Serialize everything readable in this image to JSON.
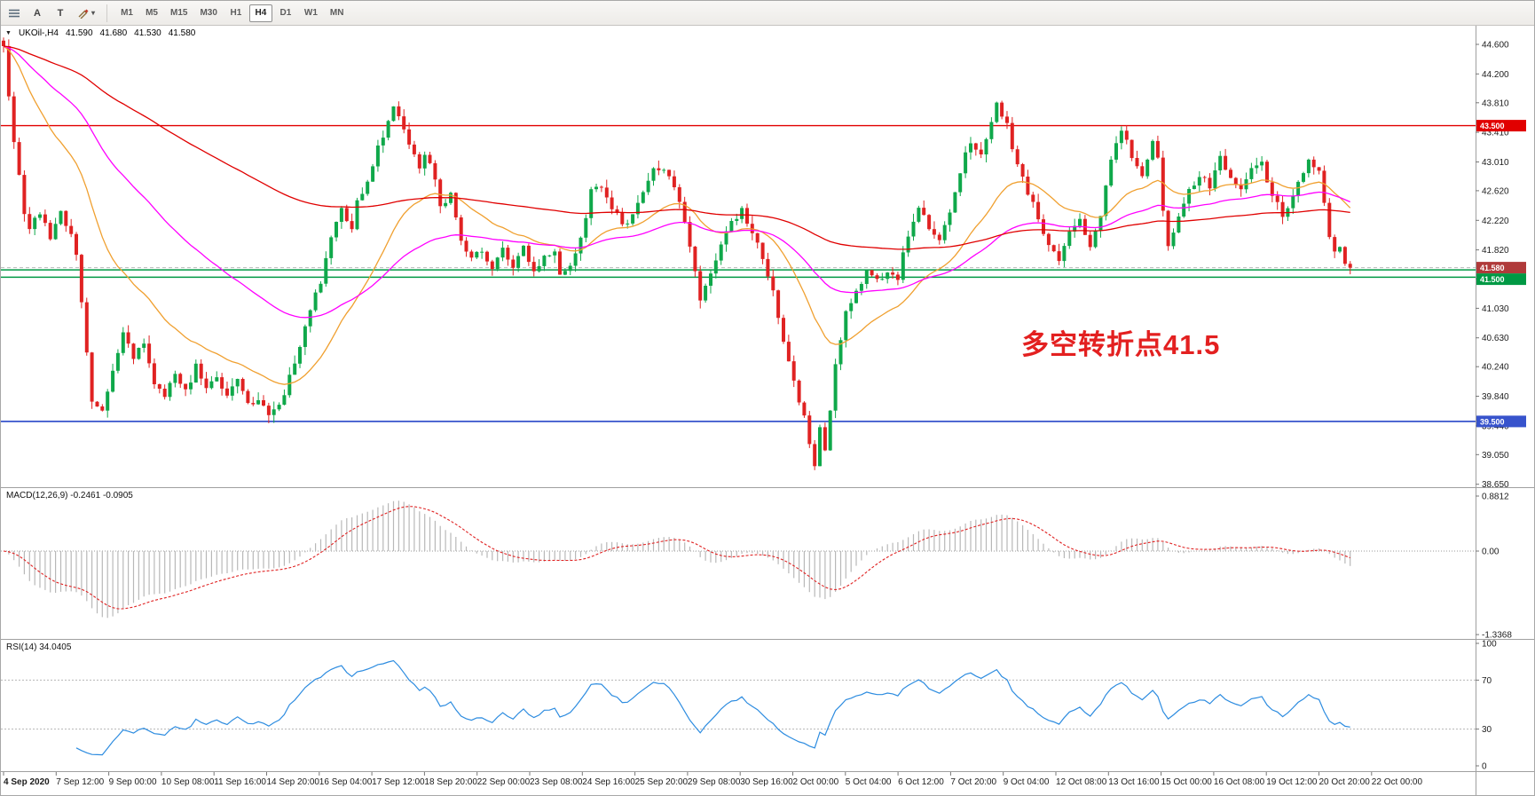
{
  "toolbar": {
    "tools": [
      {
        "name": "chart-list",
        "icon": "chart-list"
      },
      {
        "name": "text-annotation",
        "label": "A"
      },
      {
        "name": "text-label",
        "label": "T"
      },
      {
        "name": "draw",
        "icon": "draw",
        "has_dropdown": true
      }
    ],
    "timeframes": [
      "M1",
      "M5",
      "M15",
      "M30",
      "H1",
      "H4",
      "D1",
      "W1",
      "MN"
    ],
    "active_timeframe": "H4"
  },
  "chart": {
    "readout": {
      "symbol": "UKOil-,H4",
      "open": "41.590",
      "high": "41.680",
      "low": "41.530",
      "close": "41.580"
    },
    "annotation": {
      "text": "多空转折点41.5",
      "color": "#e32020"
    },
    "y_axis": [
      "44.600",
      "44.200",
      "43.810",
      "43.410",
      "43.010",
      "42.620",
      "42.220",
      "41.820",
      "41.430",
      "41.030",
      "40.630",
      "40.240",
      "39.840",
      "39.440",
      "39.050",
      "38.650"
    ],
    "x_axis": [
      "4 Sep 2020",
      "7 Sep 12:00",
      "9 Sep 00:00",
      "10 Sep 08:00",
      "11 Sep 16:00",
      "14 Sep 20:00",
      "16 Sep 04:00",
      "17 Sep 12:00",
      "18 Sep 20:00",
      "22 Sep 00:00",
      "23 Sep 08:00",
      "24 Sep 16:00",
      "25 Sep 20:00",
      "29 Sep 08:00",
      "30 Sep 16:00",
      "2 Oct 00:00",
      "5 Oct 04:00",
      "6 Oct 12:00",
      "7 Oct 20:00",
      "9 Oct 04:00",
      "12 Oct 08:00",
      "13 Oct 16:00",
      "15 Oct 00:00",
      "16 Oct 08:00",
      "19 Oct 12:00",
      "20 Oct 20:00",
      "22 Oct 00:00"
    ],
    "price_badges": [
      {
        "label": "43.500",
        "value": 43.5,
        "bg": "#e10000"
      },
      {
        "label": "41.580",
        "value": 41.58,
        "bg": "#b03a3a"
      },
      {
        "label": "41.500",
        "value": 41.5,
        "bg": "#009944"
      },
      {
        "label": "39.500",
        "value": 39.5,
        "bg": "#3753cc"
      }
    ]
  },
  "macd": {
    "label": "MACD(12,26,9) -0.2461 -0.0905",
    "axis": [
      "0.8812",
      "0.00",
      "-1.3368"
    ]
  },
  "rsi": {
    "label": "RSI(14) 34.0405",
    "axis": [
      "100",
      "70",
      "30",
      "0"
    ]
  },
  "chart_data": {
    "type": "candlestick",
    "symbol": "UKOil-",
    "timeframe": "H4",
    "title": "UKOil- H4 candlestick chart with MACD and RSI",
    "bars": 260,
    "ylim": [
      38.61,
      44.84
    ],
    "current_ohlc": {
      "open": 41.59,
      "high": 41.68,
      "low": 41.53,
      "close": 41.58
    },
    "price_path_anchors": [
      [
        0,
        44.55
      ],
      [
        1,
        43.9
      ],
      [
        2,
        43.3
      ],
      [
        3,
        42.8
      ],
      [
        4,
        42.3
      ],
      [
        5,
        42.1
      ],
      [
        7,
        42.35
      ],
      [
        9,
        41.95
      ],
      [
        11,
        42.3
      ],
      [
        13,
        42.05
      ],
      [
        14,
        41.75
      ],
      [
        16,
        40.45
      ],
      [
        17,
        39.75
      ],
      [
        19,
        39.65
      ],
      [
        21,
        40.15
      ],
      [
        23,
        40.7
      ],
      [
        25,
        40.35
      ],
      [
        27,
        40.6
      ],
      [
        29,
        40.05
      ],
      [
        31,
        39.85
      ],
      [
        33,
        40.15
      ],
      [
        35,
        39.9
      ],
      [
        37,
        40.25
      ],
      [
        39,
        39.95
      ],
      [
        41,
        40.1
      ],
      [
        43,
        39.85
      ],
      [
        45,
        40.05
      ],
      [
        47,
        39.7
      ],
      [
        49,
        39.8
      ],
      [
        51,
        39.6
      ],
      [
        53,
        39.7
      ],
      [
        55,
        40.1
      ],
      [
        57,
        40.55
      ],
      [
        59,
        41
      ],
      [
        61,
        41.4
      ],
      [
        63,
        42
      ],
      [
        65,
        42.35
      ],
      [
        67,
        42.1
      ],
      [
        68,
        42.45
      ],
      [
        70,
        42.7
      ],
      [
        72,
        43.2
      ],
      [
        74,
        43.55
      ],
      [
        75,
        43.8
      ],
      [
        76,
        43.6
      ],
      [
        78,
        43.2
      ],
      [
        80,
        42.95
      ],
      [
        81,
        43.15
      ],
      [
        83,
        42.8
      ],
      [
        84,
        42.4
      ],
      [
        86,
        42.55
      ],
      [
        88,
        41.95
      ],
      [
        90,
        41.7
      ],
      [
        92,
        41.8
      ],
      [
        94,
        41.55
      ],
      [
        96,
        41.85
      ],
      [
        98,
        41.6
      ],
      [
        100,
        41.9
      ],
      [
        102,
        41.5
      ],
      [
        104,
        41.7
      ],
      [
        106,
        41.8
      ],
      [
        107,
        41.45
      ],
      [
        109,
        41.6
      ],
      [
        111,
        41.95
      ],
      [
        113,
        42.6
      ],
      [
        115,
        42.7
      ],
      [
        117,
        42.4
      ],
      [
        119,
        42.15
      ],
      [
        121,
        42.3
      ],
      [
        123,
        42.65
      ],
      [
        125,
        42.9
      ],
      [
        127,
        42.95
      ],
      [
        129,
        42.7
      ],
      [
        131,
        42.2
      ],
      [
        133,
        41.5
      ],
      [
        134,
        41.15
      ],
      [
        136,
        41.55
      ],
      [
        138,
        41.9
      ],
      [
        140,
        42.2
      ],
      [
        142,
        42.35
      ],
      [
        144,
        42.05
      ],
      [
        146,
        41.7
      ],
      [
        148,
        41.3
      ],
      [
        150,
        40.55
      ],
      [
        152,
        40.05
      ],
      [
        154,
        39.55
      ],
      [
        155,
        39.15
      ],
      [
        156,
        38.9
      ],
      [
        157,
        39.45
      ],
      [
        158,
        39.15
      ],
      [
        159,
        39.6
      ],
      [
        160,
        40.25
      ],
      [
        162,
        40.95
      ],
      [
        164,
        41.3
      ],
      [
        166,
        41.5
      ],
      [
        168,
        41.4
      ],
      [
        170,
        41.55
      ],
      [
        172,
        41.45
      ],
      [
        174,
        42.05
      ],
      [
        176,
        42.4
      ],
      [
        178,
        42.15
      ],
      [
        180,
        41.95
      ],
      [
        182,
        42.35
      ],
      [
        184,
        42.9
      ],
      [
        186,
        43.3
      ],
      [
        188,
        43.1
      ],
      [
        190,
        43.55
      ],
      [
        191,
        43.8
      ],
      [
        193,
        43.5
      ],
      [
        195,
        42.95
      ],
      [
        197,
        42.6
      ],
      [
        199,
        42.25
      ],
      [
        201,
        41.9
      ],
      [
        203,
        41.7
      ],
      [
        205,
        42.05
      ],
      [
        207,
        42.2
      ],
      [
        209,
        41.9
      ],
      [
        211,
        42.3
      ],
      [
        213,
        43
      ],
      [
        215,
        43.45
      ],
      [
        217,
        43.1
      ],
      [
        219,
        42.8
      ],
      [
        221,
        43.25
      ],
      [
        222,
        43.05
      ],
      [
        223,
        42.3
      ],
      [
        224,
        41.85
      ],
      [
        226,
        42.3
      ],
      [
        228,
        42.6
      ],
      [
        230,
        42.85
      ],
      [
        232,
        42.65
      ],
      [
        234,
        43.05
      ],
      [
        236,
        42.8
      ],
      [
        238,
        42.6
      ],
      [
        240,
        42.9
      ],
      [
        242,
        43
      ],
      [
        244,
        42.55
      ],
      [
        246,
        42.3
      ],
      [
        248,
        42.55
      ],
      [
        250,
        42.9
      ],
      [
        251,
        43.05
      ],
      [
        253,
        42.85
      ],
      [
        254,
        42.45
      ],
      [
        255,
        42
      ],
      [
        256,
        41.75
      ],
      [
        257,
        41.85
      ],
      [
        258,
        41.65
      ],
      [
        259,
        41.58
      ]
    ],
    "noise": 0.05,
    "wick": 0.11,
    "hlines": [
      {
        "price": 43.5,
        "color": "#e10000",
        "width": 1.4,
        "dash": ""
      },
      {
        "price": 41.55,
        "color": "#009944",
        "width": 1.5,
        "dash": ""
      },
      {
        "price": 41.45,
        "color": "#009944",
        "width": 1.5,
        "dash": ""
      },
      {
        "price": 41.58,
        "color": "#b9b9b9",
        "width": 1,
        "dash": "4 3"
      },
      {
        "price": 39.5,
        "color": "#3753cc",
        "width": 1.7,
        "dash": ""
      }
    ],
    "moving_averages": [
      {
        "name": "fast-orange",
        "period": 24,
        "color": "#f0a030"
      },
      {
        "name": "mid-magenta",
        "period": 60,
        "color": "#ff00ff"
      },
      {
        "name": "slow-red",
        "period": 160,
        "color": "#e00000"
      }
    ],
    "macd": {
      "fast": 12,
      "slow": 26,
      "signal": 9,
      "value": -0.2461,
      "signal_value": -0.0905,
      "axis_max": 0.8812,
      "axis_min": -1.3368
    },
    "rsi": {
      "period": 14,
      "value": 34.0405,
      "levels": [
        30,
        70
      ]
    },
    "colors": {
      "bull": "#0fa84a",
      "bear": "#e02222",
      "hist": "#b8b8b8",
      "rsi_line": "#2d8ce0",
      "macd_signal": "#e02222"
    }
  }
}
